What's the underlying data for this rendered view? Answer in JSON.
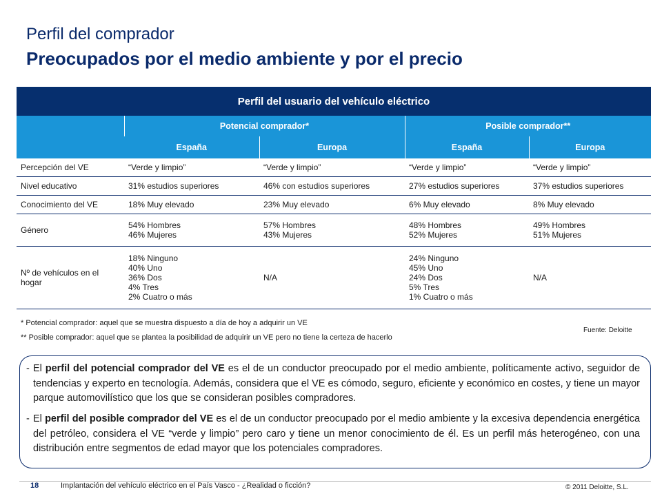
{
  "title": "Perfil del comprador",
  "subtitle": "Preocupados por el medio ambiente y por el precio",
  "table": {
    "main_header": "Perfil del usuario del vehículo eléctrico",
    "group_headers": [
      "Potencial comprador*",
      "Posible comprador**"
    ],
    "sub_headers": [
      "España",
      "Europa",
      "España",
      "Europa"
    ],
    "rows": [
      {
        "label": "Percepción del VE",
        "cells": [
          "“Verde y limpio”",
          "“Verde y limpio”",
          "“Verde y limpio”",
          "“Verde y limpio”"
        ]
      },
      {
        "label": "Nivel educativo",
        "cells": [
          "31% estudios superiores",
          "46% con estudios superiores",
          "27% estudios superiores",
          "37% estudios superiores"
        ]
      },
      {
        "label": "Conocimiento del VE",
        "cells": [
          "18% Muy elevado",
          "23% Muy elevado",
          "6% Muy elevado",
          "8% Muy elevado"
        ]
      },
      {
        "label": "Género",
        "cells": [
          "54% Hombres\n46% Mujeres",
          "57% Hombres\n43% Mujeres",
          "48% Hombres\n52% Mujeres",
          "49% Hombres\n51% Mujeres"
        ]
      },
      {
        "label": "Nº de vehículos en el hogar",
        "cells": [
          "18% Ninguno\n40% Uno\n36% Dos\n4%   Tres\n2%   Cuatro o más",
          "N/A",
          "24% Ninguno\n45% Uno\n24% Dos\n5%   Tres\n1%   Cuatro o más",
          "N/A"
        ]
      }
    ]
  },
  "footnotes": {
    "note1": "* Potencial comprador: aquel que se muestra dispuesto a día de hoy a adquirir un VE",
    "note2": "** Posible comprador: aquel que se plantea la posibilidad de adquirir un VE pero no tiene la certeza de hacerlo",
    "source": "Fuente: Deloitte"
  },
  "summary": {
    "p1_pre": "El ",
    "p1_bold": "perfil del potencial comprador del VE",
    "p1_post": " es el de un conductor preocupado por el medio ambiente, políticamente activo, seguidor de tendencias y experto en tecnología. Además, considera que el VE es cómodo, seguro, eficiente y económico en costes, y tiene un mayor parque automovilístico que los que se consideran posibles compradores.",
    "p2_pre": "El ",
    "p2_bold": "perfil del posible comprador del VE",
    "p2_post": " es el de un conductor preocupado por el medio ambiente y la excesiva dependencia energética del petróleo, considera el VE “verde y limpio” pero caro y tiene un menor conocimiento de él. Es un perfil más heterogéneo, con una distribución entre segmentos de edad mayor que los potenciales compradores."
  },
  "footer": {
    "page": "18",
    "title": "Implantación del vehículo eléctrico en el País Vasco - ¿Realidad o ficción?",
    "copyright": "© 2011 Deloitte, S.L."
  }
}
